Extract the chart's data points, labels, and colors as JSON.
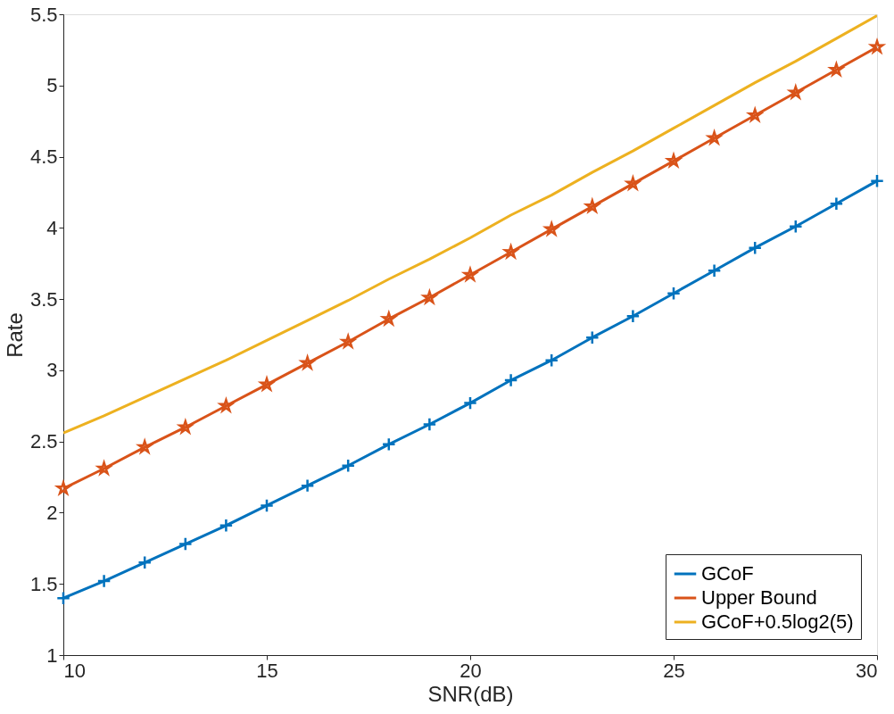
{
  "chart_data": {
    "type": "line",
    "xlabel": "SNR(dB)",
    "ylabel": "Rate",
    "x": [
      10,
      11,
      12,
      13,
      14,
      15,
      16,
      17,
      18,
      19,
      20,
      21,
      22,
      23,
      24,
      25,
      26,
      27,
      28,
      29,
      30
    ],
    "series": [
      {
        "name": "GCoF",
        "color": "#0072bd",
        "marker": "cross",
        "values": [
          1.4,
          1.52,
          1.65,
          1.78,
          1.91,
          2.05,
          2.19,
          2.33,
          2.48,
          2.62,
          2.77,
          2.93,
          3.07,
          3.23,
          3.38,
          3.54,
          3.7,
          3.86,
          4.01,
          4.17,
          4.33
        ]
      },
      {
        "name": "Upper Bound",
        "color": "#d95319",
        "marker": "star",
        "values": [
          2.17,
          2.31,
          2.46,
          2.6,
          2.75,
          2.9,
          3.05,
          3.2,
          3.36,
          3.51,
          3.67,
          3.83,
          3.99,
          4.15,
          4.31,
          4.47,
          4.63,
          4.79,
          4.95,
          5.11,
          5.27
        ]
      },
      {
        "name": "GCoF+0.5log2(5)",
        "color": "#edb120",
        "marker": "none",
        "values": [
          2.56,
          2.68,
          2.81,
          2.94,
          3.07,
          3.21,
          3.35,
          3.49,
          3.64,
          3.78,
          3.93,
          4.09,
          4.23,
          4.39,
          4.54,
          4.7,
          4.86,
          5.02,
          5.17,
          5.33,
          5.49
        ]
      }
    ],
    "xlim": [
      10,
      30
    ],
    "xticks": [
      10,
      15,
      20,
      25,
      30
    ],
    "ylim": [
      1,
      5.5
    ],
    "yticks": [
      1,
      1.5,
      2,
      2.5,
      3,
      3.5,
      4,
      4.5,
      5,
      5.5
    ],
    "grid": false,
    "legend": "bottom right",
    "line_style": "solid"
  }
}
